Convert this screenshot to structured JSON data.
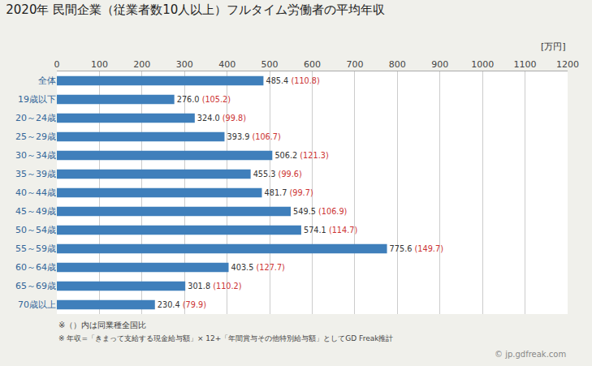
{
  "chart_data": {
    "type": "bar",
    "orientation": "horizontal",
    "title": "2020年 民間企業（従業者数10人以上）フルタイム労働者の平均年収",
    "x_unit_label": "[万円]",
    "categories": [
      "全体",
      "19歳以下",
      "20～24歳",
      "25～29歳",
      "30～34歳",
      "35～39歳",
      "40～44歳",
      "45～49歳",
      "50～54歳",
      "55～59歳",
      "60～64歳",
      "65～69歳",
      "70歳以上"
    ],
    "values": [
      485.4,
      276.0,
      324.0,
      393.9,
      506.2,
      455.3,
      481.7,
      549.5,
      574.1,
      775.6,
      403.5,
      301.8,
      230.4
    ],
    "value_labels": [
      "485.4",
      "276.0",
      "324.0",
      "393.9",
      "506.2",
      "455.3",
      "481.7",
      "549.5",
      "574.1",
      "775.6",
      "403.5",
      "301.8",
      "230.4"
    ],
    "ratios": [
      110.8,
      105.2,
      99.8,
      106.7,
      121.3,
      99.6,
      99.7,
      106.9,
      114.7,
      149.7,
      127.7,
      110.2,
      79.9
    ],
    "ratio_labels": [
      "(110.8)",
      "(105.2)",
      "(99.8)",
      "(106.7)",
      "(121.3)",
      "(99.6)",
      "(99.7)",
      "(106.9)",
      "(114.7)",
      "(149.7)",
      "(127.7)",
      "(110.2)",
      "(79.9)"
    ],
    "color": "#3f7fbb",
    "value_label_color": "#333333",
    "ratio_color": "#cc3333",
    "background_color": "#f0f0eb",
    "plot_bg_color": "#ffffff",
    "xlim": [
      0,
      1200
    ],
    "xticks": [
      0,
      100,
      200,
      300,
      400,
      500,
      600,
      700,
      800,
      900,
      1000,
      1100,
      1200
    ],
    "grid": true,
    "data_labels": true,
    "footnotes": [
      "※（）内は同業種全国比",
      "※ 年収=「きまって支給する現金給与額」× 12+「年間賞与その他特別給与額」としてGD Freak推計"
    ],
    "watermark": "© jp.gdfreak.com"
  }
}
